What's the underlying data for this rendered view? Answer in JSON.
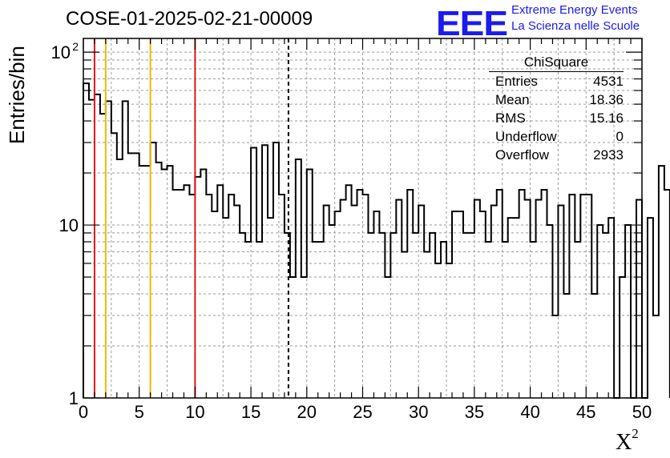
{
  "title": "COSE-01-2025-02-21-00009",
  "logo": {
    "mark": "EEE",
    "line1": "Extreme Energy Events",
    "line2": "La Scienza nelle Scuole"
  },
  "stats": {
    "title": "ChiSquare",
    "rows": [
      {
        "label": "Entries",
        "value": "4531"
      },
      {
        "label": "Mean",
        "value": "18.36"
      },
      {
        "label": "RMS",
        "value": "15.16"
      },
      {
        "label": "Underflow",
        "value": "0"
      },
      {
        "label": "Overflow",
        "value": "2933"
      }
    ]
  },
  "chart_data": {
    "type": "histogram",
    "xlabel": "X",
    "xlabel_superscript": "2",
    "ylabel": "Entries/bin",
    "xlim": [
      0,
      50
    ],
    "ylim": [
      1,
      120
    ],
    "yscale": "log",
    "grid": true,
    "bin_width": 0.5,
    "x_ticks": [
      0,
      5,
      10,
      15,
      20,
      25,
      30,
      35,
      40,
      45,
      50
    ],
    "y_tick_labels": [
      {
        "value": 1,
        "label": "1",
        "exp": ""
      },
      {
        "value": 10,
        "label": "10",
        "exp": ""
      },
      {
        "value": 100,
        "label": "10",
        "exp": "2"
      }
    ],
    "values": [
      66,
      53,
      57,
      44,
      52,
      34,
      24,
      52,
      26,
      26,
      22,
      22,
      30,
      23,
      21,
      22,
      16,
      16,
      17,
      15,
      19,
      21,
      15,
      12,
      17,
      11,
      15,
      13,
      9,
      8,
      28,
      8,
      29,
      11,
      30,
      15,
      9,
      5,
      24,
      5,
      21,
      8,
      8,
      13,
      10,
      12,
      14,
      17,
      13,
      16,
      15,
      9,
      12,
      9,
      5,
      9,
      14,
      7,
      16,
      9,
      13,
      7,
      9,
      6,
      8,
      6,
      12,
      12,
      9,
      9,
      14,
      12,
      8,
      13,
      16,
      8,
      11,
      11,
      16,
      14,
      8,
      14,
      16,
      10,
      3,
      13,
      4,
      15,
      8,
      15,
      15,
      4,
      10,
      9,
      11,
      1,
      5,
      10,
      1,
      14,
      1,
      11,
      3,
      22,
      16
    ],
    "vertical_lines": [
      {
        "x": 1,
        "color": "#e8151b",
        "style": "solid"
      },
      {
        "x": 2,
        "color": "#f2b705",
        "style": "solid"
      },
      {
        "x": 6,
        "color": "#f2b705",
        "style": "solid"
      },
      {
        "x": 10,
        "color": "#e8151b",
        "style": "solid"
      },
      {
        "x": 18.36,
        "color": "#000000",
        "style": "dashed"
      }
    ]
  }
}
